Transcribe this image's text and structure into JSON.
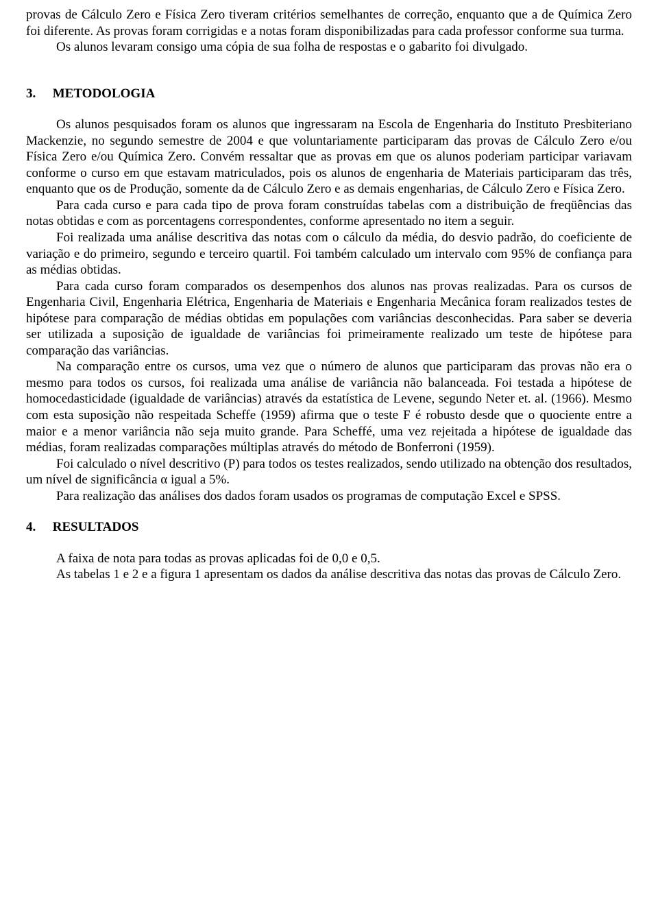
{
  "intro": {
    "p1": "provas de Cálculo Zero e Física Zero tiveram critérios semelhantes de correção, enquanto que a de Química Zero foi diferente. As provas foram corrigidas e a notas foram disponibilizadas para cada professor conforme sua turma.",
    "p2": "Os alunos levaram consigo uma cópia de sua folha de respostas e o gabarito foi divulgado."
  },
  "section3": {
    "num": "3.",
    "title": "METODOLOGIA",
    "p1": "Os alunos pesquisados foram os alunos que ingressaram na Escola de Engenharia do Instituto Presbiteriano Mackenzie, no segundo semestre de 2004 e que voluntariamente participaram das provas de Cálculo Zero e/ou Física Zero e/ou Química Zero. Convém ressaltar que as provas em que os alunos poderiam participar variavam conforme o curso em que estavam matriculados, pois os alunos de engenharia de Materiais participaram das três, enquanto que os de Produção, somente da de Cálculo Zero e as demais engenharias, de Cálculo Zero e Física Zero.",
    "p2": "Para cada curso e para cada tipo de prova foram construídas tabelas com a distribuição de freqüências das notas obtidas e com as porcentagens correspondentes, conforme apresentado no item a seguir.",
    "p3": "Foi realizada uma análise descritiva das notas com o cálculo da média, do desvio padrão, do coeficiente de variação e do primeiro, segundo e terceiro quartil. Foi também calculado um intervalo com 95% de confiança para as médias obtidas.",
    "p4": "Para cada curso foram comparados os desempenhos dos alunos nas provas realizadas. Para os cursos de Engenharia Civil, Engenharia Elétrica, Engenharia de Materiais e Engenharia Mecânica foram realizados testes de hipótese para comparação de médias obtidas em populações com variâncias desconhecidas. Para saber se deveria ser utilizada a suposição de igualdade de variâncias foi primeiramente realizado um teste de hipótese para comparação das variâncias.",
    "p5": "Na comparação entre os cursos, uma vez que o número de alunos que participaram das provas não era o mesmo para todos os cursos, foi realizada uma análise de variância não balanceada. Foi testada a hipótese de homocedasticidade (igualdade de variâncias) através da estatística de Levene, segundo Neter et. al. (1966). Mesmo com esta suposição não respeitada Scheffe (1959) afirma que o teste F é robusto desde que o quociente entre a maior e a menor variância não seja muito grande. Para Scheffé, uma vez rejeitada a hipótese de igualdade das médias, foram realizadas comparações múltiplas através do método de Bonferroni (1959).",
    "p6": "Foi calculado o nível descritivo (P) para todos os testes realizados, sendo utilizado na obtenção dos resultados, um nível de significância α igual a 5%.",
    "p7": "Para realização das análises dos dados foram usados os programas de computação Excel e SPSS."
  },
  "section4": {
    "num": "4.",
    "title": "RESULTADOS",
    "p1": "A faixa de nota para todas as provas aplicadas foi de 0,0 e 0,5.",
    "p2": "As tabelas 1 e 2 e a figura 1 apresentam os dados da análise descritiva das notas das provas de Cálculo Zero."
  }
}
